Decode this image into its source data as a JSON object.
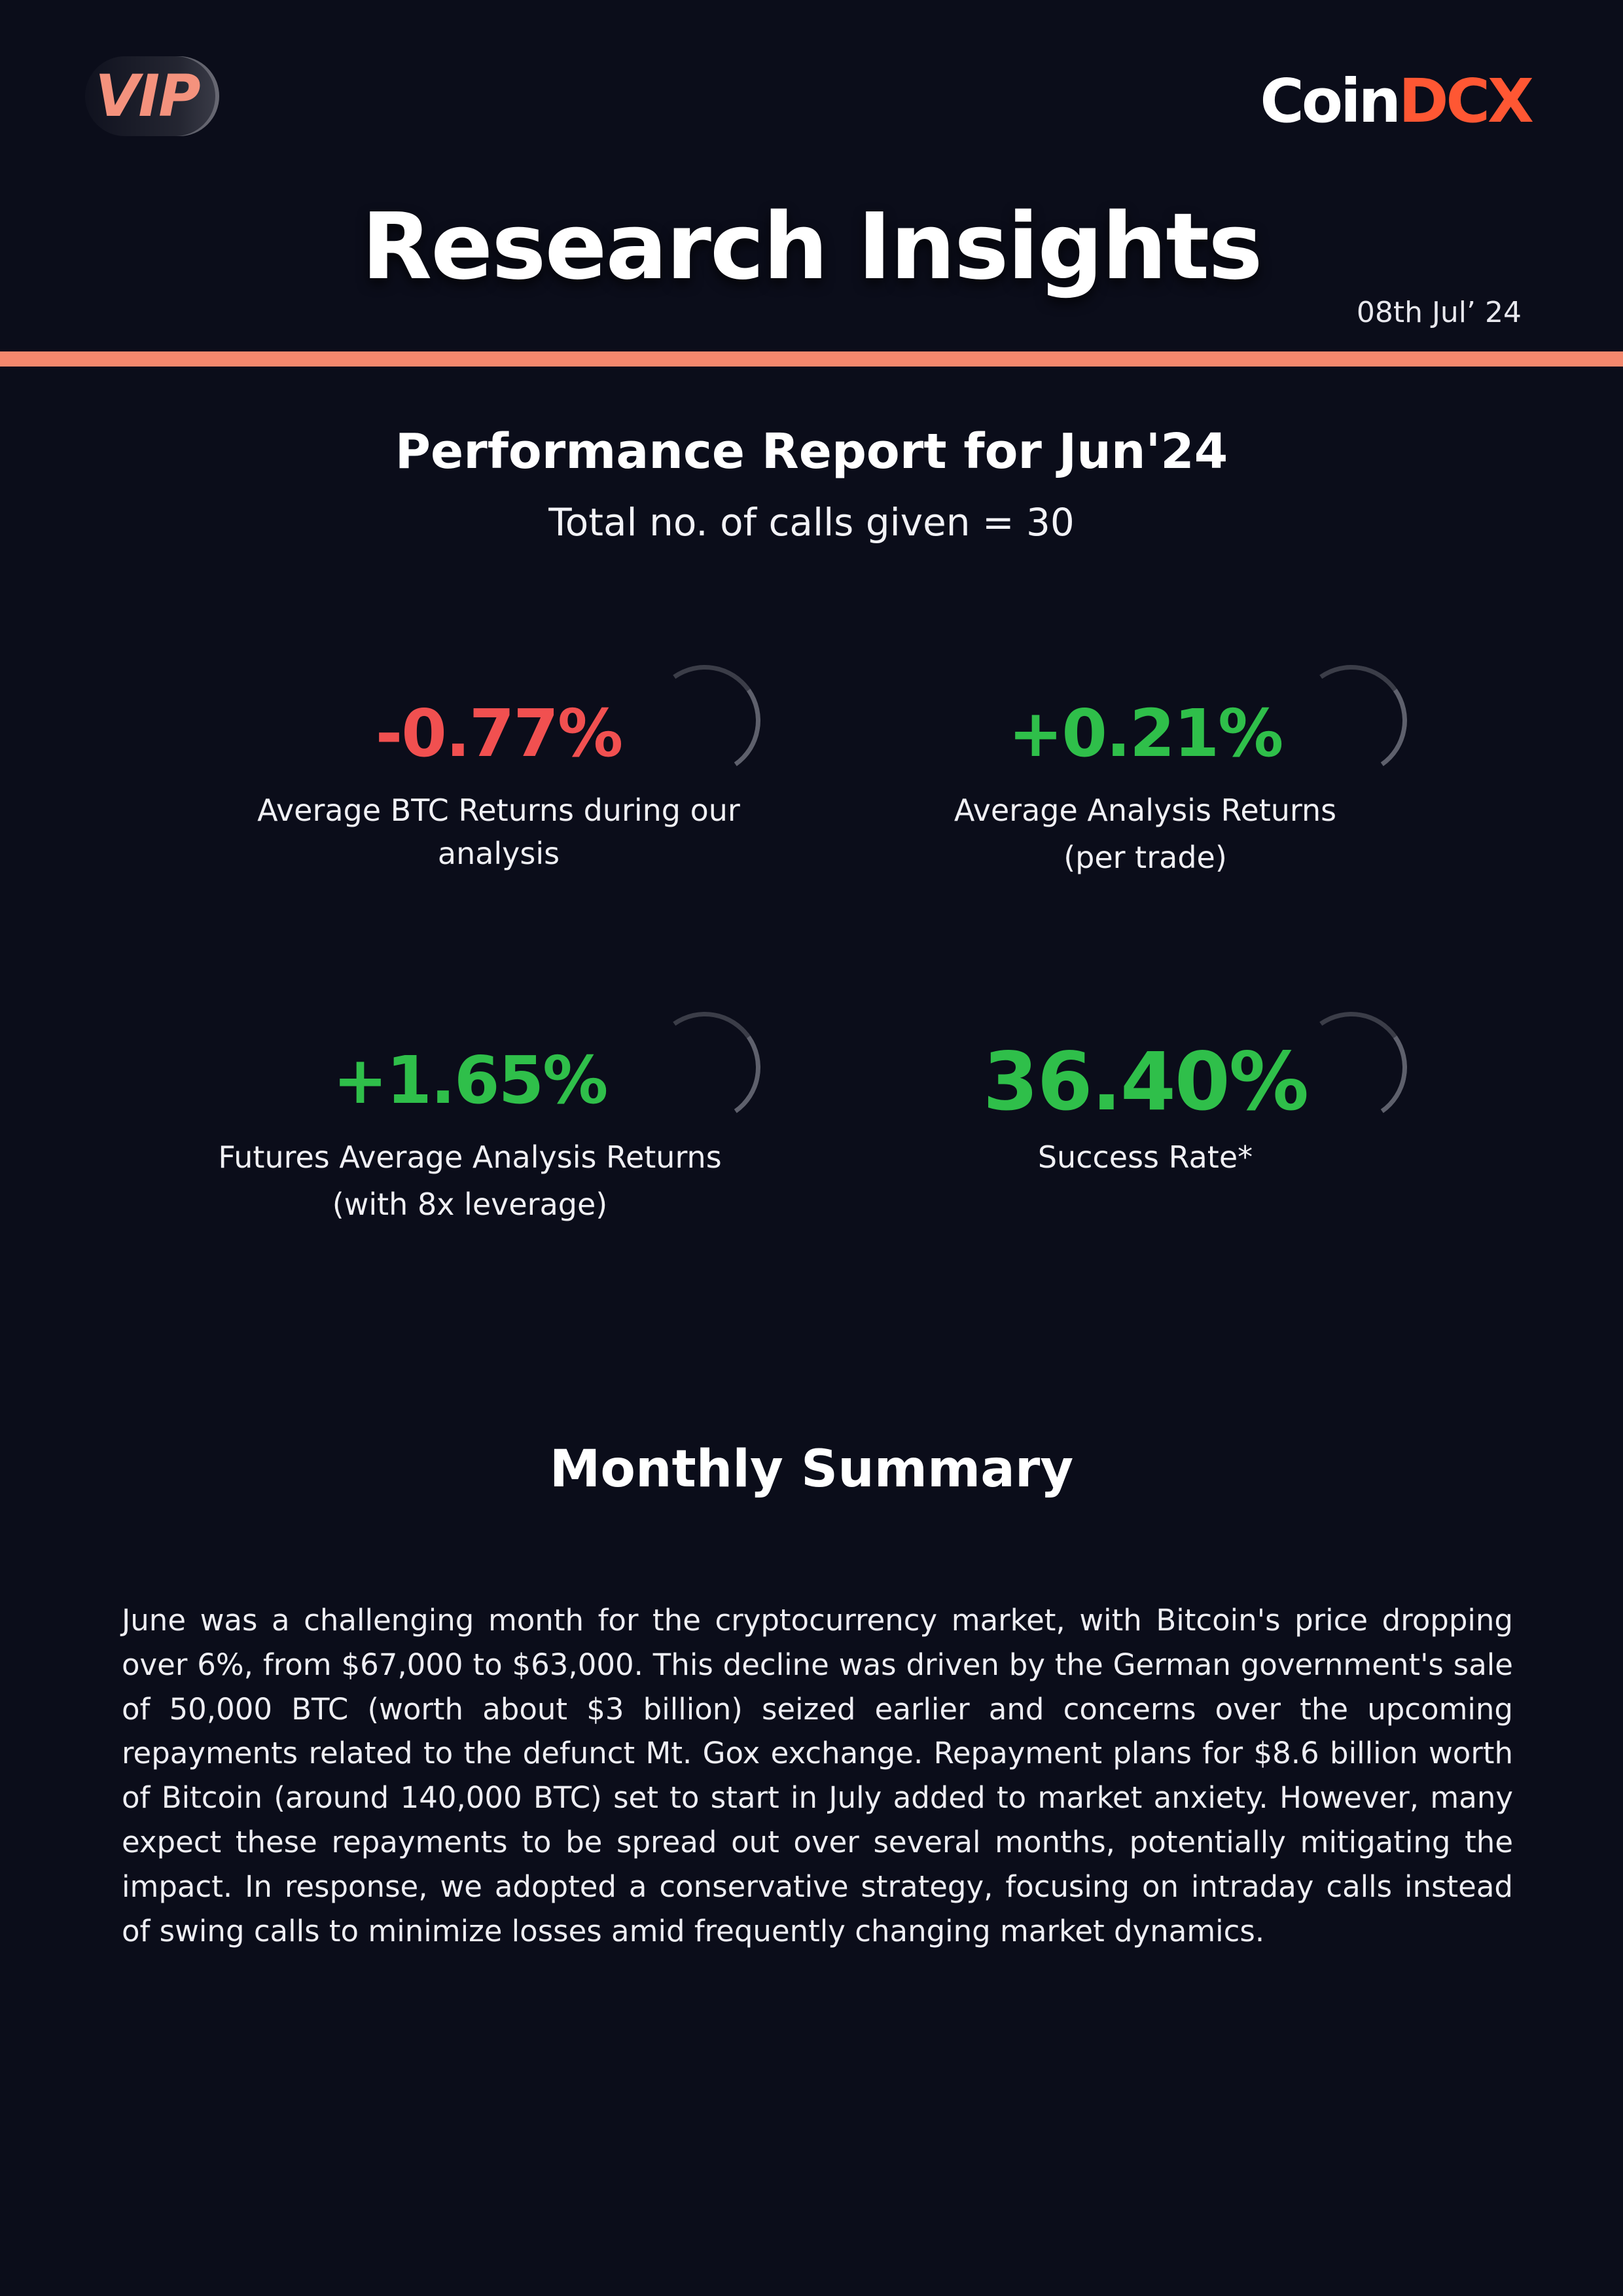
{
  "header": {
    "badge": "VIP",
    "logo": {
      "part1": "Coin",
      "part2": "DCX"
    },
    "title": "Research Insights",
    "date": "08th Jul’ 24"
  },
  "colors": {
    "background": "#0b0d1a",
    "accent": "#f4876d",
    "negative": "#f15050",
    "positive": "#2fbf4a",
    "brand": "#ff5733"
  },
  "report": {
    "title": "Performance Report for Jun'24",
    "calls": "Total no. of calls given = 30"
  },
  "stats": [
    {
      "value": "-0.77%",
      "label_line1": "Average BTC Returns during our",
      "label_line2": "analysis",
      "tone": "negative"
    },
    {
      "value": "+0.21%",
      "label_line1": "Average Analysis Returns",
      "label_line2": "(per trade)",
      "tone": "positive"
    },
    {
      "value": "+1.65%",
      "label_line1": "Futures Average Analysis Returns",
      "label_line2": "(with 8x leverage)",
      "tone": "positive"
    },
    {
      "value": "36.40%",
      "label_line1": "Success Rate*",
      "label_line2": "",
      "tone": "positive"
    }
  ],
  "summary": {
    "title": "Monthly Summary",
    "body": "June was a challenging month for the cryptocurrency market, with Bitcoin's price dropping over 6%, from $67,000 to $63,000. This decline was driven by the German government's sale of 50,000 BTC (worth about $3 billion) seized earlier and concerns over the upcoming repayments related to the defunct Mt. Gox exchange. Repayment plans for $8.6 billion worth of Bitcoin (around 140,000 BTC) set to start in July added to market anxiety. However, many expect these repayments to be spread out over several months, potentially mitigating the impact. In response, we adopted a conservative strategy, focusing on intraday calls instead of swing calls to minimize losses amid frequently changing market dynamics."
  }
}
